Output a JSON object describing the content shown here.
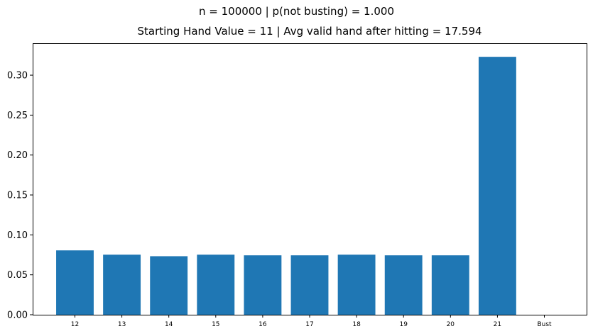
{
  "figure": {
    "suptitle": "n = 100000 | p(not busting) = 1.000",
    "title": "Starting Hand Value = 11 | Avg valid hand after hitting = 17.594"
  },
  "chart_data": {
    "type": "bar",
    "title": "Starting Hand Value = 11 | Avg valid hand after hitting = 17.594",
    "suptitle": "n = 100000 | p(not busting) = 1.000",
    "xlabel": "",
    "ylabel": "",
    "categories": [
      "12",
      "13",
      "14",
      "15",
      "16",
      "17",
      "18",
      "19",
      "20",
      "21",
      "Bust"
    ],
    "values": [
      0.0806,
      0.0752,
      0.0733,
      0.0752,
      0.0744,
      0.0744,
      0.0752,
      0.0744,
      0.0744,
      0.323,
      0.0
    ],
    "ylim": [
      0,
      0.34
    ],
    "yticks": [
      "0.00",
      "0.05",
      "0.10",
      "0.15",
      "0.20",
      "0.25",
      "0.30"
    ],
    "ytick_values": [
      0,
      0.05,
      0.1,
      0.15,
      0.2,
      0.25,
      0.3
    ],
    "bar_color": "#1f77b4",
    "grid": false
  }
}
